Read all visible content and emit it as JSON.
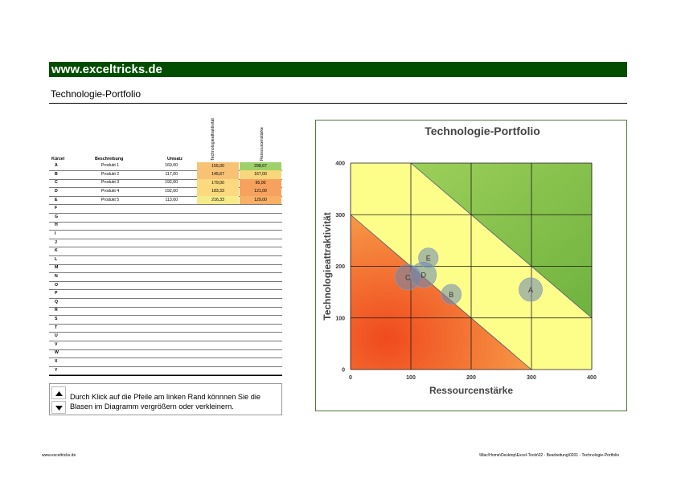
{
  "header": {
    "banner": "www.exceltricks.de",
    "subtitle": "Technologie-Portfolio"
  },
  "table": {
    "headers": {
      "kuerzel": "Kürzel",
      "beschreibung": "Beschreibung",
      "umsatz": "Umsatz",
      "technologie": "Technologieattraktivität",
      "ressource": "Ressourcenstärke"
    },
    "rows": [
      {
        "k": "A",
        "b": "Produkt 1",
        "u": "160,00",
        "t": "155,00",
        "r": "298,67",
        "tcolor": "#f7c276",
        "rcolor": "#9ed16a"
      },
      {
        "k": "B",
        "b": "Produkt 2",
        "u": "117,00",
        "t": "145,67",
        "r": "167,00",
        "tcolor": "#f7c276",
        "rcolor": "#f8d77c"
      },
      {
        "k": "C",
        "b": "Produkt 3",
        "u": "192,00",
        "t": "179,00",
        "r": "95,00",
        "tcolor": "#fbd97e",
        "rcolor": "#f6a25e"
      },
      {
        "k": "D",
        "b": "Produkt 4",
        "u": "192,00",
        "t": "183,33",
        "r": "121,00",
        "tcolor": "#fbd97e",
        "rcolor": "#f6a25e"
      },
      {
        "k": "E",
        "b": "Produkt 5",
        "u": "113,00",
        "t": "216,33",
        "r": "129,00",
        "tcolor": "#f5eb8a",
        "rcolor": "#f7b066"
      },
      {
        "k": "F"
      },
      {
        "k": "G"
      },
      {
        "k": "H"
      },
      {
        "k": "I"
      },
      {
        "k": "J"
      },
      {
        "k": "K"
      },
      {
        "k": "L"
      },
      {
        "k": "M"
      },
      {
        "k": "N"
      },
      {
        "k": "O"
      },
      {
        "k": "P"
      },
      {
        "k": "Q"
      },
      {
        "k": "R"
      },
      {
        "k": "S"
      },
      {
        "k": "T"
      },
      {
        "k": "U"
      },
      {
        "k": "V"
      },
      {
        "k": "W"
      },
      {
        "k": "X"
      },
      {
        "k": "Y"
      }
    ]
  },
  "bubble_hint": "Durch Klick auf die Pfeile am linken Rand könnnen Sie die Blasen im Diagramm vergrößern oder verkleinern.",
  "chart_data": {
    "type": "scatter",
    "title": "Technologie-Portfolio",
    "xlabel": "Ressourcenstärke",
    "ylabel": "Technologieattraktivität",
    "xlim": [
      0,
      400
    ],
    "ylim": [
      0,
      400
    ],
    "xticks": [
      0,
      100,
      200,
      300,
      400
    ],
    "yticks": [
      0,
      100,
      200,
      300,
      400
    ],
    "grid": true,
    "zones": {
      "low": "#f26c2e",
      "mid": "#fdfd8a",
      "high": "#7cc04a"
    },
    "points": [
      {
        "label": "A",
        "x": 298.67,
        "y": 155.0,
        "size": 160
      },
      {
        "label": "B",
        "x": 167.0,
        "y": 145.67,
        "size": 117
      },
      {
        "label": "C",
        "x": 95.0,
        "y": 179.0,
        "size": 192
      },
      {
        "label": "D",
        "x": 121.0,
        "y": 183.33,
        "size": 192
      },
      {
        "label": "E",
        "x": 129.0,
        "y": 216.33,
        "size": 113
      }
    ]
  },
  "footer": {
    "left": "www.exceltricks.de",
    "right": "\\Mac\\Home\\Desktop\\Excel-Tools\\02 - Bearbeitung\\0201 - Technologie-Portfolio"
  }
}
